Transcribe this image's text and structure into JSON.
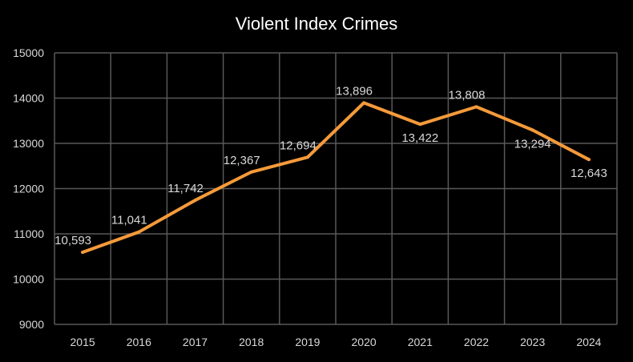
{
  "chart_data": {
    "type": "line",
    "title": "Violent Index Crimes",
    "categories": [
      "2015",
      "2016",
      "2017",
      "2018",
      "2019",
      "2020",
      "2021",
      "2022",
      "2023",
      "2024"
    ],
    "values": [
      10593,
      11041,
      11742,
      12367,
      12694,
      13896,
      13422,
      13808,
      13294,
      12643
    ],
    "data_labels": [
      "10,593",
      "11,041",
      "11,742",
      "12,367",
      "12,694",
      "13,896",
      "13,422",
      "13,808",
      "13,294",
      "12,643"
    ],
    "ylim": [
      9000,
      15000
    ],
    "yticks": [
      "9000",
      "10000",
      "11000",
      "12000",
      "13000",
      "14000",
      "15000"
    ],
    "grid": true,
    "colors": {
      "line": "#f59a3a",
      "background": "#000000",
      "grid": "#595959",
      "text": "#d9d9d9"
    }
  }
}
